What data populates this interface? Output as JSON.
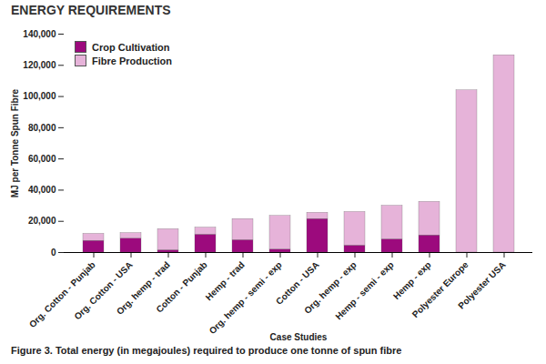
{
  "chart_data": {
    "type": "bar",
    "stacked": true,
    "title": "ENERGY REQUIREMENTS",
    "caption": "Figure 3. Total energy (in megajoules) required to produce one tonne of spun fibre",
    "x_label": "Case Studies",
    "y_label": "MJ per Tonne Spun Fibre",
    "categories": [
      "Org. Cotton - Punjab",
      "Org. Cotton - USA",
      "Org. hemp - trad",
      "Cotton - Punjab",
      "Hemp - trad",
      "Org. hemp - semi - exp",
      "Cotton - USA",
      "Org. hemp - exp",
      "Hemp - semi - exp",
      "Hemp - exp",
      "Polyester Europe",
      "Polyester USA"
    ],
    "series": [
      {
        "name": "Crop Cultivation",
        "color": "#9c0a7d",
        "values": [
          7500,
          9000,
          1500,
          11500,
          8000,
          2000,
          21500,
          4500,
          8500,
          11000,
          0,
          0
        ]
      },
      {
        "name": "Fibre Production",
        "color": "#e6b3d9",
        "values": [
          4500,
          3500,
          13500,
          4500,
          13500,
          21500,
          4000,
          21500,
          21500,
          21500,
          104000,
          126500
        ]
      }
    ],
    "ylim": [
      0,
      140000
    ],
    "yticks": [
      0,
      {
        "value": 20000,
        "label": "20,000"
      },
      {
        "value": 40000,
        "label": "40,000"
      },
      {
        "value": 60000,
        "label": "60,000"
      },
      {
        "value": 80000,
        "label": "80,000"
      },
      {
        "value": 100000,
        "label": "100,000"
      },
      {
        "value": 120000,
        "label": "120,000"
      },
      {
        "value": 140000,
        "label": "140,000"
      }
    ],
    "grid": false,
    "legend": "top-left"
  }
}
